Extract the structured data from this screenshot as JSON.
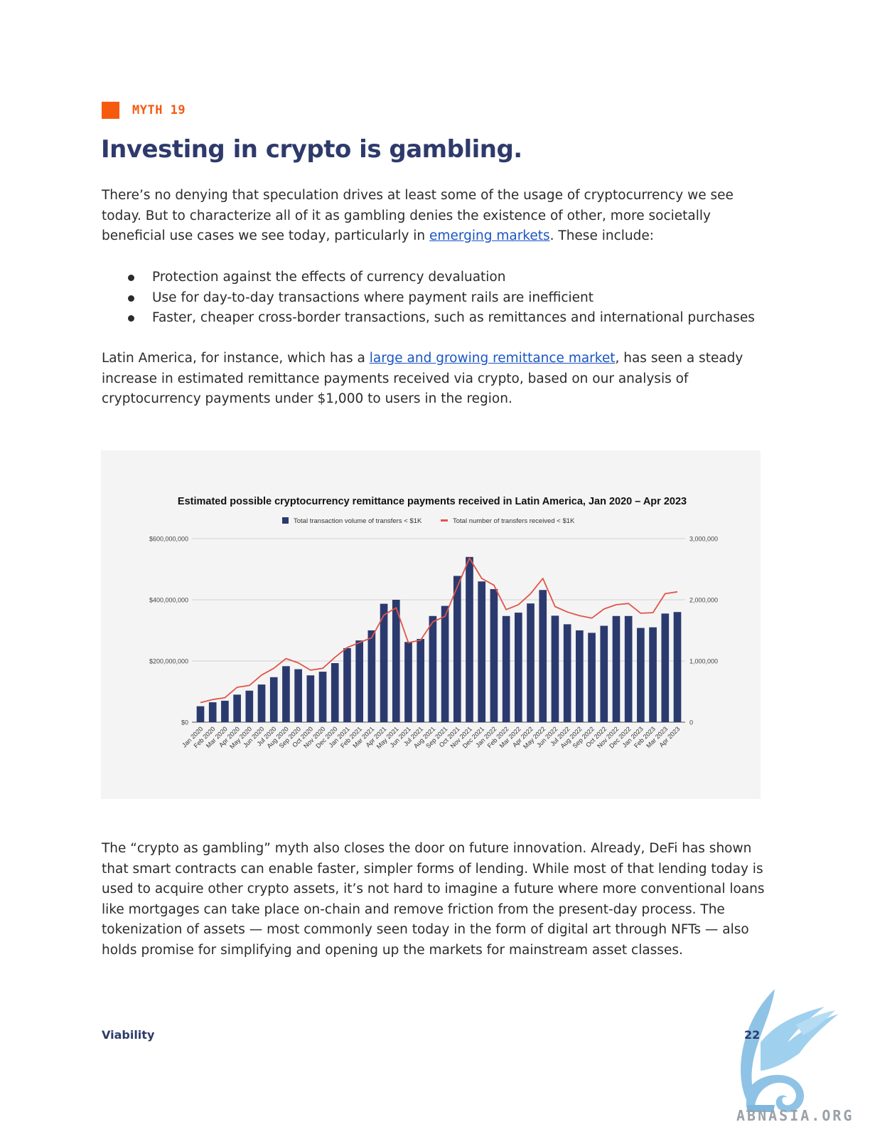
{
  "myth_label": "MYTH 19",
  "title": "Investing in crypto is gambling.",
  "intro": {
    "before_link": "There’s no denying that speculation drives at least some of the usage of cryptocurrency we see today. But to characterize all of it as gambling denies the existence of other, more societally beneficial use cases we see today, particularly in ",
    "link": "emerging markets",
    "after_link": ". These include:"
  },
  "bullets": [
    "Protection against the effects of currency devaluation",
    "Use for day-to-day transactions where payment rails are inefficient",
    "Faster, cheaper cross-border transactions, such as remittances and international purchases"
  ],
  "latam": {
    "before_link": "Latin America, for instance, which has a ",
    "link": "large and growing remittance market",
    "after_link": ", has seen a steady increase in estimated remittance payments received via crypto, based on our analysis of cryptocurrency payments under $1,000 to users in the region."
  },
  "closing": "The “crypto as gambling” myth also closes the door on future innovation. Already, DeFi has shown that smart contracts can enable faster, simpler forms of lending. While most of that lending today is used to acquire other crypto assets, it’s not hard to imagine a future where more conventional loans like mortgages can take place on-chain and remove friction from the present-day process. The tokenization of assets — most commonly seen today in the form of digital art through NFTs — also holds promise for simplifying and opening up the markets for mainstream asset classes.",
  "footer": {
    "section": "Viability",
    "page": "22"
  },
  "watermark": "ABNASIA.ORG",
  "colors": {
    "accent": "#f55a0f",
    "title": "#2e3a6b",
    "link": "#1a55c4",
    "bar": "#2b3a6e",
    "line": "#e2554a"
  },
  "chart_data": {
    "type": "bar",
    "title": "Estimated possible cryptocurrency remittance payments received in Latin America, Jan 2020 – Apr 2023",
    "legend_position": "top-center",
    "grid": true,
    "categories": [
      "Jan 2020",
      "Feb 2020",
      "Mar 2020",
      "Apr 2020",
      "May 2020",
      "Jun 2020",
      "Jul 2020",
      "Aug 2020",
      "Sep 2020",
      "Oct 2020",
      "Nov 2020",
      "Dec 2020",
      "Jan 2021",
      "Feb 2021",
      "Mar 2021",
      "Apr 2021",
      "May 2021",
      "Jun 2021",
      "Jul 2021",
      "Aug 2021",
      "Sep 2021",
      "Oct 2021",
      "Nov 2021",
      "Dec 2021",
      "Jan 2022",
      "Feb 2022",
      "Mar 2022",
      "Apr 2022",
      "May 2022",
      "Jun 2022",
      "Jul 2022",
      "Aug 2022",
      "Sep 2022",
      "Oct 2022",
      "Nov 2022",
      "Dec 2022",
      "Jan 2023",
      "Feb 2023",
      "Mar 2023",
      "Apr 2023"
    ],
    "series": [
      {
        "name": "Total transaction volume of transfers < $1K",
        "type": "bar",
        "axis": "left",
        "values": [
          52000000,
          65000000,
          70000000,
          90000000,
          103000000,
          123000000,
          147000000,
          183000000,
          173000000,
          153000000,
          165000000,
          193000000,
          242000000,
          267000000,
          300000000,
          387000000,
          400000000,
          262000000,
          272000000,
          347000000,
          380000000,
          478000000,
          540000000,
          460000000,
          435000000,
          347000000,
          358000000,
          388000000,
          432000000,
          348000000,
          320000000,
          300000000,
          292000000,
          315000000,
          347000000,
          347000000,
          308000000,
          310000000,
          355000000,
          360000000
        ]
      },
      {
        "name": "Total number of transfers received < $1K",
        "type": "line",
        "axis": "right",
        "values": [
          320000,
          370000,
          400000,
          570000,
          600000,
          770000,
          880000,
          1040000,
          970000,
          850000,
          880000,
          1060000,
          1220000,
          1300000,
          1380000,
          1750000,
          1870000,
          1300000,
          1340000,
          1640000,
          1730000,
          2210000,
          2680000,
          2350000,
          2240000,
          1840000,
          1920000,
          2100000,
          2350000,
          1890000,
          1800000,
          1740000,
          1700000,
          1850000,
          1920000,
          1940000,
          1780000,
          1790000,
          2100000,
          2130000
        ]
      }
    ],
    "left_axis": {
      "ylim": [
        0,
        600000000
      ],
      "ticks": [
        "$0",
        "$200,000,000",
        "$400,000,000",
        "$600,000,000"
      ]
    },
    "right_axis": {
      "ylim": [
        0,
        3000000
      ],
      "ticks": [
        "0",
        "1,000,000",
        "2,000,000",
        "3,000,000"
      ]
    }
  }
}
